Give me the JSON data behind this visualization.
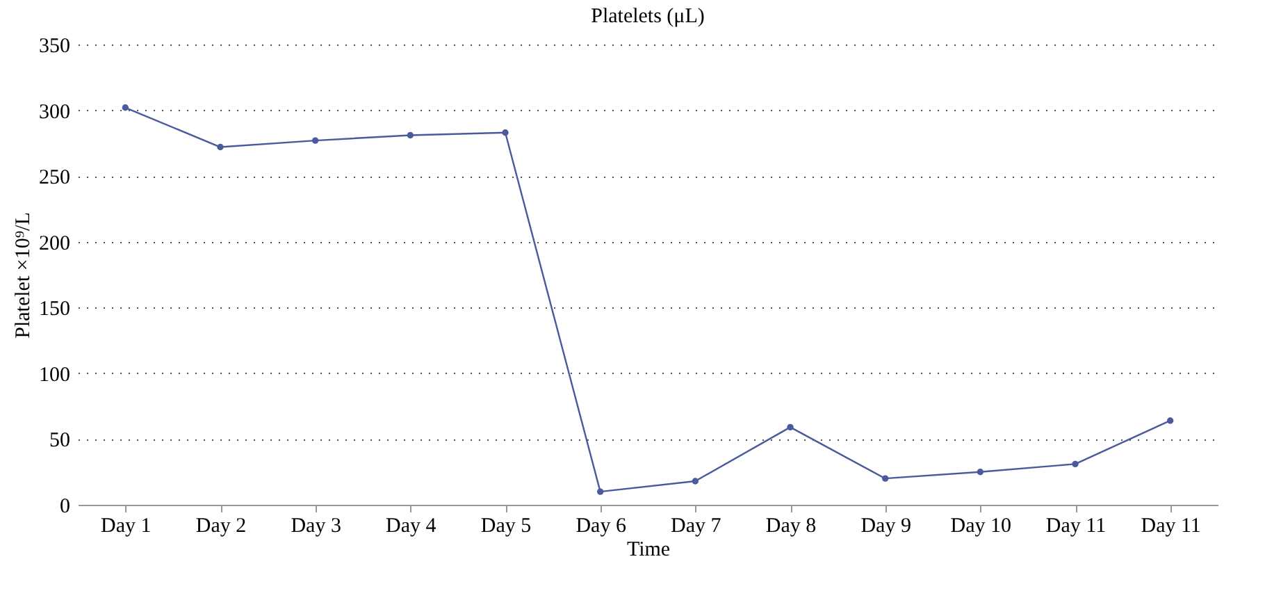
{
  "chart_data": {
    "type": "line",
    "title": "Platelets (μL)",
    "xlabel": "Time",
    "ylabel": "Platelet ×10⁹/L",
    "categories": [
      "Day 1",
      "Day 2",
      "Day 3",
      "Day 4",
      "Day 5",
      "Day 6",
      "Day 7",
      "Day 8",
      "Day 9",
      "Day 10",
      "Day 11",
      "Day 11"
    ],
    "series": [
      {
        "color": "#4a5a9c",
        "values": [
          302,
          272,
          277,
          281,
          283,
          10,
          18,
          59,
          20,
          25,
          31,
          64
        ]
      }
    ],
    "ylim": [
      0,
      350
    ],
    "yticks": [
      0,
      50,
      100,
      150,
      200,
      250,
      300,
      350
    ],
    "grid": "y",
    "marker": "circle",
    "line_style": "solid"
  }
}
